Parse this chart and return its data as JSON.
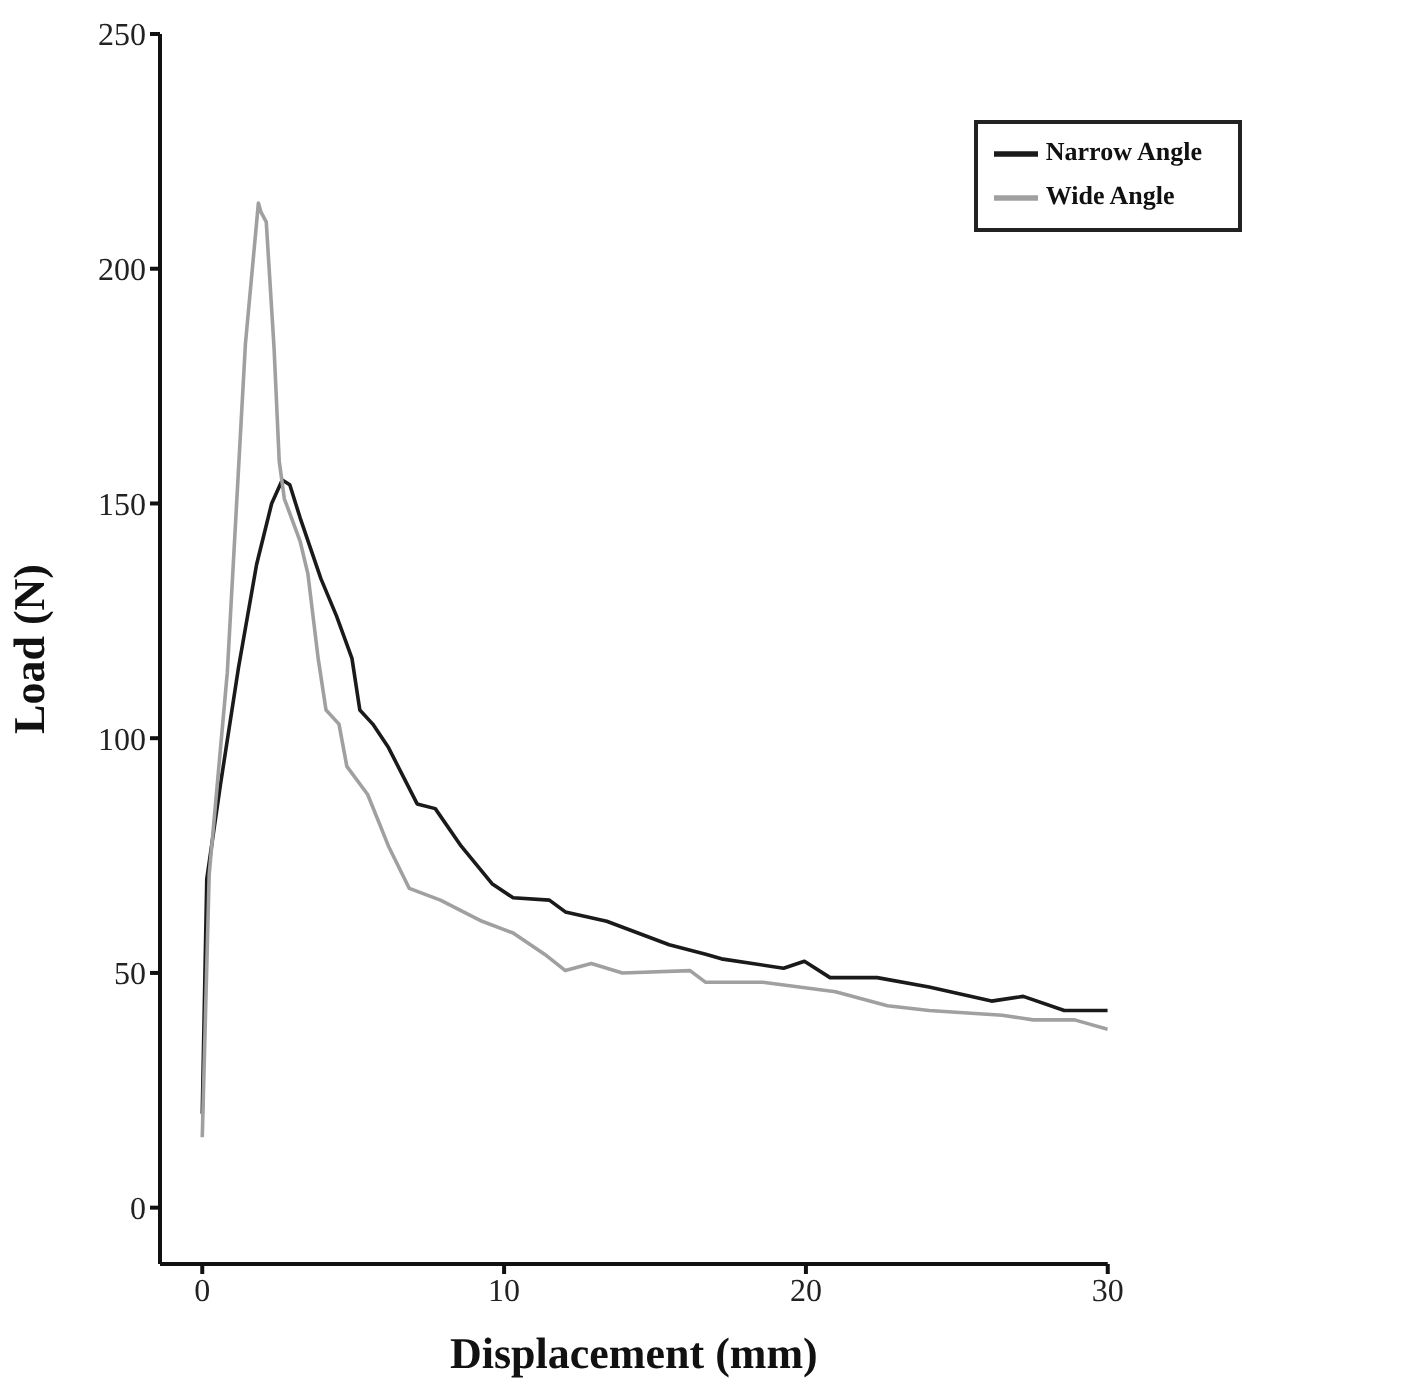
{
  "chart_data": {
    "type": "line",
    "xlabel": "Displacement (mm)",
    "ylabel": "Load (N)",
    "xlim": [
      -1.4,
      30
    ],
    "xticks": [
      0,
      10,
      20,
      30
    ],
    "ylim": [
      -12,
      250
    ],
    "yticks": [
      0,
      50,
      100,
      150,
      200,
      250
    ],
    "grid": false,
    "legend": "top right",
    "line_style": "solid",
    "series": [
      {
        "name": "Narrow Angle",
        "color": "#1a1a1a",
        "x": [
          0,
          0.15,
          0.6,
          1.2,
          1.8,
          2.3,
          2.65,
          2.9,
          3.24,
          3.93,
          4.45,
          4.96,
          5.22,
          5.65,
          6.17,
          7.12,
          7.72,
          8.58,
          9.6,
          10.3,
          11.5,
          12.03,
          13.4,
          15.47,
          16.68,
          17.2,
          19.26,
          19.95,
          20.8,
          22.36,
          24.08,
          26.15,
          27.2,
          28.56,
          30
        ],
        "values": [
          20,
          70,
          90,
          115,
          137,
          150,
          155,
          154,
          147,
          134,
          126,
          117,
          106,
          103,
          98,
          86,
          85,
          77,
          69,
          66,
          65.5,
          63,
          61,
          56,
          54,
          53,
          51,
          52.5,
          49,
          49,
          47,
          44,
          45,
          42,
          42
        ]
      },
      {
        "name": "Wide Angle",
        "color": "#a0a0a0",
        "x": [
          0,
          0.23,
          0.83,
          1.43,
          1.86,
          1.95,
          2.12,
          2.38,
          2.55,
          2.72,
          3.24,
          3.5,
          3.84,
          4.1,
          4.53,
          4.79,
          5.48,
          6.17,
          6.86,
          7.89,
          9.27,
          10.3,
          11.34,
          12.03,
          12.89,
          13.92,
          16.16,
          16.68,
          18.57,
          20.98,
          22.7,
          24.08,
          26.5,
          27.53,
          28.9,
          30
        ],
        "values": [
          15,
          71,
          114,
          184,
          214,
          212,
          210,
          183,
          159,
          151,
          142,
          135,
          117,
          106,
          103,
          94,
          88,
          77,
          68,
          65.5,
          61,
          58.5,
          54,
          50.5,
          52,
          50,
          50.5,
          48,
          48,
          46,
          43,
          42,
          41,
          40,
          40,
          38
        ]
      }
    ]
  }
}
